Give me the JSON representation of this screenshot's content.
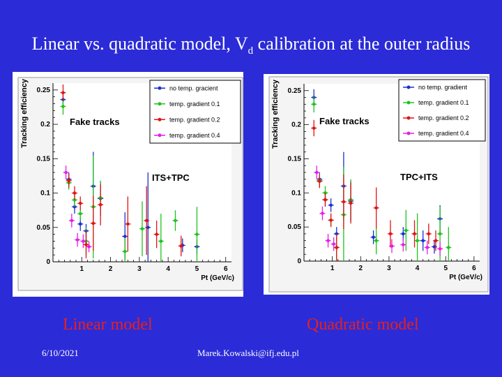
{
  "title": {
    "main": "Linear vs. quadratic model, V",
    "sub": "d",
    "rest": " calibration at the outer radius"
  },
  "captions": {
    "left": "Linear model",
    "right": "Quadratic model"
  },
  "footer": {
    "date": "6/10/2021",
    "email": "Marek.Kowalski@ifj.edu.pl"
  },
  "colors": {
    "background": "#2b2bd8",
    "caption": "#e8201c"
  },
  "chart_data": [
    {
      "type": "scatter",
      "title": "Fake tracks",
      "annotation": "ITS+TPC",
      "xlabel": "Pt (GeV/c)",
      "ylabel": "Tracking efficiency",
      "xlim": [
        0,
        6.2
      ],
      "ylim": [
        0,
        0.26
      ],
      "xticks": [
        "1",
        "2",
        "3",
        "4",
        "5",
        "6"
      ],
      "yticks": [
        "0",
        "0.05",
        "0.1",
        "0.15",
        "0.2",
        "0.25"
      ],
      "legend_position": "top-right",
      "series": [
        {
          "name": "no temp. gracient",
          "color": "#1a2fd0",
          "points": [
            {
              "x": 0.35,
              "y": 0.236,
              "e": 0.012
            },
            {
              "x": 0.55,
              "y": 0.12,
              "e": 0.01
            },
            {
              "x": 0.75,
              "y": 0.08,
              "e": 0.01
            },
            {
              "x": 0.95,
              "y": 0.055,
              "e": 0.01
            },
            {
              "x": 1.15,
              "y": 0.045,
              "e": 0.01
            },
            {
              "x": 1.4,
              "y": 0.11,
              "e": 0.05
            },
            {
              "x": 1.65,
              "y": 0.092,
              "e": 0.025
            },
            {
              "x": 2.5,
              "y": 0.037,
              "e": 0.035
            },
            {
              "x": 3.3,
              "y": 0.05,
              "e": 0.08
            },
            {
              "x": 4.5,
              "y": 0.024,
              "e": 0.01
            },
            {
              "x": 5.0,
              "y": 0.022,
              "e": 0.01
            }
          ]
        },
        {
          "name": "temp. gradient 0.1",
          "color": "#1fc21f",
          "points": [
            {
              "x": 0.35,
              "y": 0.226,
              "e": 0.012
            },
            {
              "x": 0.55,
              "y": 0.115,
              "e": 0.01
            },
            {
              "x": 0.75,
              "y": 0.09,
              "e": 0.01
            },
            {
              "x": 0.95,
              "y": 0.07,
              "e": 0.01
            },
            {
              "x": 1.15,
              "y": 0.03,
              "e": 0.02
            },
            {
              "x": 1.4,
              "y": 0.08,
              "e": 0.075
            },
            {
              "x": 1.65,
              "y": 0.093,
              "e": 0.025
            },
            {
              "x": 2.5,
              "y": 0.015,
              "e": 0.02
            },
            {
              "x": 3.1,
              "y": 0.048,
              "e": 0.04
            },
            {
              "x": 3.75,
              "y": 0.03,
              "e": 0.04
            },
            {
              "x": 4.25,
              "y": 0.06,
              "e": 0.015
            },
            {
              "x": 5.0,
              "y": 0.04,
              "e": 0.04
            }
          ]
        },
        {
          "name": "temp. gradient 0.2",
          "color": "#e11414",
          "points": [
            {
              "x": 0.35,
              "y": 0.246,
              "e": 0.012
            },
            {
              "x": 0.55,
              "y": 0.118,
              "e": 0.01
            },
            {
              "x": 0.75,
              "y": 0.1,
              "e": 0.01
            },
            {
              "x": 0.95,
              "y": 0.085,
              "e": 0.01
            },
            {
              "x": 1.15,
              "y": 0.025,
              "e": 0.02
            },
            {
              "x": 1.4,
              "y": 0.056,
              "e": 0.04
            },
            {
              "x": 1.65,
              "y": 0.083,
              "e": 0.03
            },
            {
              "x": 2.6,
              "y": 0.055,
              "e": 0.04
            },
            {
              "x": 3.25,
              "y": 0.06,
              "e": 0.05
            },
            {
              "x": 3.6,
              "y": 0.04,
              "e": 0.02
            },
            {
              "x": 4.45,
              "y": 0.023,
              "e": 0.015
            }
          ]
        },
        {
          "name": "temp. gradient 0.4",
          "color": "#e51ee5",
          "points": [
            {
              "x": 0.45,
              "y": 0.13,
              "e": 0.01
            },
            {
              "x": 0.65,
              "y": 0.06,
              "e": 0.01
            },
            {
              "x": 0.85,
              "y": 0.032,
              "e": 0.01
            },
            {
              "x": 1.05,
              "y": 0.03,
              "e": 0.01
            },
            {
              "x": 1.25,
              "y": 0.022,
              "e": 0.008
            }
          ]
        }
      ]
    },
    {
      "type": "scatter",
      "title": "Fake tracks",
      "annotation": "TPC+ITS",
      "xlabel": "Pt (GeV/c)",
      "ylabel": "Tracking efficiency",
      "xlim": [
        0,
        6.2
      ],
      "ylim": [
        0,
        0.26
      ],
      "xticks": [
        "1",
        "2",
        "3",
        "4",
        "5",
        "6"
      ],
      "yticks": [
        "0",
        "0.05",
        "0.1",
        "0.15",
        "0.2",
        "0.25"
      ],
      "legend_position": "top-right",
      "series": [
        {
          "name": "no temp. gradient",
          "color": "#1a2fd0",
          "points": [
            {
              "x": 0.35,
              "y": 0.24,
              "e": 0.012
            },
            {
              "x": 0.55,
              "y": 0.12,
              "e": 0.01
            },
            {
              "x": 0.75,
              "y": 0.09,
              "e": 0.01
            },
            {
              "x": 0.95,
              "y": 0.082,
              "e": 0.01
            },
            {
              "x": 1.15,
              "y": 0.04,
              "e": 0.01
            },
            {
              "x": 1.4,
              "y": 0.11,
              "e": 0.05
            },
            {
              "x": 1.65,
              "y": 0.088,
              "e": 0.03
            },
            {
              "x": 2.45,
              "y": 0.035,
              "e": 0.01
            },
            {
              "x": 3.5,
              "y": 0.04,
              "e": 0.01
            },
            {
              "x": 4.2,
              "y": 0.03,
              "e": 0.015
            },
            {
              "x": 4.8,
              "y": 0.062,
              "e": 0.02
            },
            {
              "x": 4.6,
              "y": 0.021,
              "e": 0.01
            }
          ]
        },
        {
          "name": "temp. gradient 0.1",
          "color": "#1fc21f",
          "points": [
            {
              "x": 0.35,
              "y": 0.23,
              "e": 0.012
            },
            {
              "x": 0.55,
              "y": 0.118,
              "e": 0.01
            },
            {
              "x": 0.75,
              "y": 0.1,
              "e": 0.01
            },
            {
              "x": 0.95,
              "y": 0.06,
              "e": 0.01
            },
            {
              "x": 1.15,
              "y": 0.02,
              "e": 0.02
            },
            {
              "x": 1.4,
              "y": 0.068,
              "e": 0.07
            },
            {
              "x": 1.65,
              "y": 0.09,
              "e": 0.03
            },
            {
              "x": 2.55,
              "y": 0.03,
              "e": 0.02
            },
            {
              "x": 3.6,
              "y": 0.045,
              "e": 0.03
            },
            {
              "x": 4.0,
              "y": 0.03,
              "e": 0.04
            },
            {
              "x": 4.8,
              "y": 0.04,
              "e": 0.04
            },
            {
              "x": 5.1,
              "y": 0.02,
              "e": 0.03
            }
          ]
        },
        {
          "name": "temp. gradient 0.2",
          "color": "#e11414",
          "points": [
            {
              "x": 0.35,
              "y": 0.195,
              "e": 0.012
            },
            {
              "x": 0.55,
              "y": 0.117,
              "e": 0.01
            },
            {
              "x": 0.75,
              "y": 0.09,
              "e": 0.01
            },
            {
              "x": 0.95,
              "y": 0.06,
              "e": 0.01
            },
            {
              "x": 1.15,
              "y": 0.02,
              "e": 0.02
            },
            {
              "x": 1.4,
              "y": 0.087,
              "e": 0.04
            },
            {
              "x": 1.65,
              "y": 0.085,
              "e": 0.03
            },
            {
              "x": 2.55,
              "y": 0.078,
              "e": 0.03
            },
            {
              "x": 3.05,
              "y": 0.04,
              "e": 0.02
            },
            {
              "x": 3.9,
              "y": 0.04,
              "e": 0.02
            },
            {
              "x": 4.4,
              "y": 0.04,
              "e": 0.015
            },
            {
              "x": 4.65,
              "y": 0.03,
              "e": 0.015
            }
          ]
        },
        {
          "name": "temp. gradient 0.4",
          "color": "#e51ee5",
          "points": [
            {
              "x": 0.45,
              "y": 0.13,
              "e": 0.01
            },
            {
              "x": 0.65,
              "y": 0.07,
              "e": 0.01
            },
            {
              "x": 0.85,
              "y": 0.03,
              "e": 0.01
            },
            {
              "x": 1.05,
              "y": 0.025,
              "e": 0.01
            },
            {
              "x": 3.1,
              "y": 0.022,
              "e": 0.01
            },
            {
              "x": 3.5,
              "y": 0.024,
              "e": 0.01
            },
            {
              "x": 4.35,
              "y": 0.02,
              "e": 0.01
            },
            {
              "x": 4.8,
              "y": 0.018,
              "e": 0.01
            }
          ]
        }
      ]
    }
  ]
}
